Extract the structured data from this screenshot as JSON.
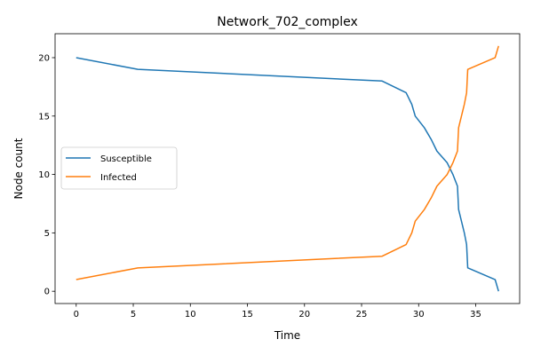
{
  "chart_data": {
    "type": "line",
    "title": "Network_702_complex",
    "xlabel": "Time",
    "ylabel": "Node count",
    "xlim": [
      -1.85,
      38.85
    ],
    "ylim": [
      -1.05,
      22.05
    ],
    "xticks": [
      0,
      5,
      10,
      15,
      20,
      25,
      30,
      35
    ],
    "yticks": [
      0,
      5,
      10,
      15,
      20
    ],
    "grid": false,
    "legend_position": "center-left",
    "series": [
      {
        "name": "Susceptible",
        "color": "#1f77b4",
        "x": [
          0,
          5.4,
          26.8,
          28.9,
          29.4,
          29.7,
          30.5,
          31.1,
          31.6,
          32.5,
          33.0,
          33.4,
          33.5,
          34.0,
          34.2,
          34.3,
          36.7,
          37.0
        ],
        "y": [
          20,
          19,
          18,
          17,
          16,
          15,
          14,
          13,
          12,
          11,
          10,
          9,
          7,
          5,
          4,
          2,
          1,
          0
        ]
      },
      {
        "name": "Infected",
        "color": "#ff7f0e",
        "x": [
          0,
          5.4,
          26.8,
          28.9,
          29.4,
          29.7,
          30.5,
          31.1,
          31.6,
          32.5,
          33.0,
          33.4,
          33.5,
          34.0,
          34.2,
          34.3,
          36.7,
          37.0
        ],
        "y": [
          1,
          2,
          3,
          4,
          5,
          6,
          7,
          8,
          9,
          10,
          11,
          12,
          14,
          16,
          17,
          19,
          20,
          21
        ]
      }
    ]
  }
}
